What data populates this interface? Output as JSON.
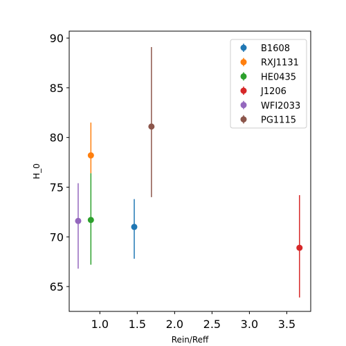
{
  "chart_data": {
    "type": "scatter",
    "title": "",
    "xlabel": "Rein/Reff",
    "ylabel": "H_0",
    "xlim": [
      0.59,
      3.82
    ],
    "ylim": [
      62.5,
      90.7
    ],
    "xticks": [
      1.0,
      1.5,
      2.0,
      2.5,
      3.0,
      3.5
    ],
    "xtick_labels": [
      "1.0",
      "1.5",
      "2.0",
      "2.5",
      "3.0",
      "3.5"
    ],
    "yticks": [
      65,
      70,
      75,
      80,
      85,
      90
    ],
    "ytick_labels": [
      "65",
      "70",
      "75",
      "80",
      "85",
      "90"
    ],
    "grid": false,
    "legend_position": "upper-right",
    "series": [
      {
        "name": "B1608",
        "color": "#1f77b4",
        "x": 1.46,
        "y": 71.0,
        "y_low": 67.8,
        "y_high": 73.8
      },
      {
        "name": "RXJ1131",
        "color": "#ff7f0e",
        "x": 0.88,
        "y": 78.2,
        "y_low": 76.4,
        "y_high": 81.5
      },
      {
        "name": "HE0435",
        "color": "#2ca02c",
        "x": 0.88,
        "y": 71.7,
        "y_low": 67.2,
        "y_high": 76.4
      },
      {
        "name": "J1206",
        "color": "#d62728",
        "x": 3.67,
        "y": 68.9,
        "y_low": 63.9,
        "y_high": 74.2
      },
      {
        "name": "WFI2033",
        "color": "#9467bd",
        "x": 0.71,
        "y": 71.6,
        "y_low": 66.8,
        "y_high": 75.4
      },
      {
        "name": "PG1115",
        "color": "#8c564b",
        "x": 1.69,
        "y": 81.1,
        "y_low": 74.0,
        "y_high": 89.1
      }
    ]
  }
}
